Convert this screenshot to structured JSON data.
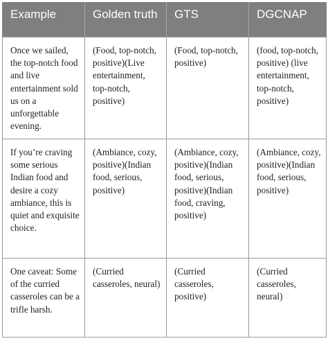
{
  "table": {
    "headers": [
      "Example",
      "Golden truth",
      "GTS",
      "DGCNAP"
    ],
    "rows": [
      {
        "example": "Once we sailed, the top-notch food and live entertainment sold us on a unforgettable evening.",
        "golden": "(Food, top-notch, positive)(Live entertainment, top-notch, positive)",
        "gts": "(Food, top-notch, positive)",
        "dgcnap": "(food, top-notch, positive) (live entertainment, top-notch, positive)"
      },
      {
        "example": "If you’re craving some serious Indian food and desire a cozy ambiance, this is quiet and exquisite choice.",
        "golden": "(Ambiance, cozy, positive)(Indian food, serious, positive)",
        "gts": "(Ambiance, cozy, positive)(Indian food, serious, positive)(Indian food, craving, positive)",
        "dgcnap": "(Ambiance, cozy, positive)(Indian food, serious, positive)"
      },
      {
        "example": "One caveat: Some of the curried casseroles can be a trifle harsh.",
        "golden": "(Curried casseroles, neural)",
        "gts": "(Curried casseroles, positive)",
        "dgcnap": "(Curried casseroles, neural)"
      }
    ]
  }
}
